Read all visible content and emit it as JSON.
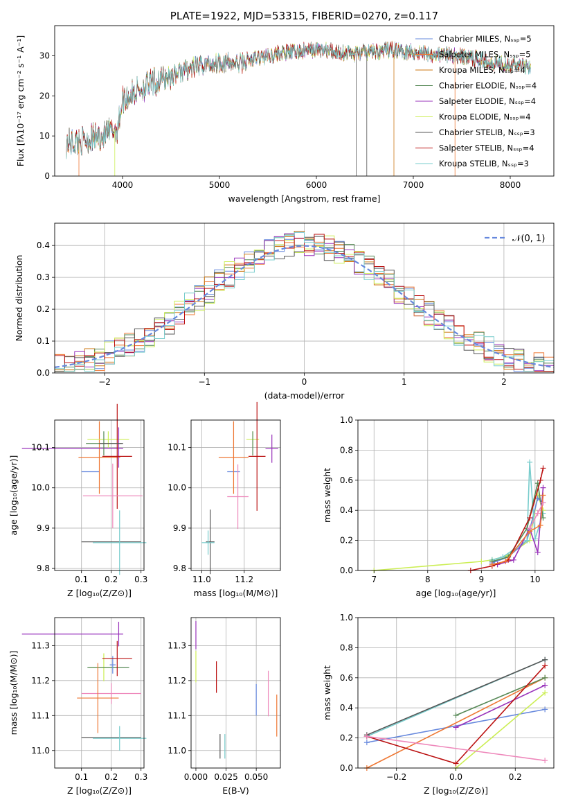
{
  "colors": {
    "chabrier_miles": "#6688dd",
    "salpeter_miles": "#ee7733",
    "kroupa_miles": "#cc7711",
    "chabrier_elodie": "#558855",
    "salpeter_elodie": "#9933bb",
    "kroupa_elodie": "#ccee55",
    "chabrier_stelib": "#555555",
    "salpeter_stelib": "#bb1111",
    "kroupa_stelib": "#77cccc",
    "pink": "#ee88bb",
    "gauss": "#6688dd"
  },
  "chart_data": [
    {
      "type": "line",
      "title": "PLATE=1922, MJD=53315, FIBERID=0270, z=0.117",
      "xlabel": "wavelength [Angstrom, rest frame]",
      "ylabel": "Flux [fλ10⁻¹⁷ erg cm⁻² s⁻¹ A⁻¹]",
      "xlim": [
        3300,
        8450
      ],
      "ylim": [
        0,
        37.5
      ],
      "xticks": [
        "4000",
        "5000",
        "6000",
        "7000",
        "8000"
      ],
      "yticks": [
        "0",
        "10",
        "20",
        "30"
      ],
      "legend_position": "right",
      "series": [
        {
          "name": "Chabrier MILES, Nₛₛₚ=5"
        },
        {
          "name": "Salpeter MILES, Nₛₛₚ=5"
        },
        {
          "name": "Kroupa MILES, Nₛₛₚ=4"
        },
        {
          "name": "Chabrier ELODIE, Nₛₛₚ=4"
        },
        {
          "name": "Salpeter ELODIE, Nₛₛₚ=4"
        },
        {
          "name": "Kroupa ELODIE, Nₛₛₚ=4"
        },
        {
          "name": "Chabrier STELIB, Nₛₛₚ=3"
        },
        {
          "name": "Salpeter STELIB, Nₛₛₚ=4"
        },
        {
          "name": "Kroupa STELIB, Nₛₛₚ=3"
        }
      ],
      "continuum": {
        "x": [
          3400,
          3600,
          3800,
          3950,
          4000,
          4200,
          4400,
          4600,
          4800,
          5000,
          5200,
          5400,
          5600,
          5800,
          6000,
          6200,
          6400,
          6600,
          6800,
          7000,
          7200,
          7400,
          7600,
          7800,
          8000,
          8200
        ],
        "y": [
          8,
          9,
          10,
          12,
          19,
          22,
          24,
          26,
          27.5,
          28.5,
          28,
          29.5,
          30.5,
          31,
          31.5,
          31,
          30.5,
          31,
          31.5,
          31,
          30.5,
          30,
          29.5,
          28.5,
          28,
          27.5
        ]
      }
    },
    {
      "type": "bar",
      "xlabel": "(data-model)/error",
      "ylabel": "Normed distribution",
      "xlim": [
        -2.5,
        2.5
      ],
      "ylim": [
        0,
        0.47
      ],
      "xticks": [
        "−2",
        "−1",
        "0",
        "1",
        "2"
      ],
      "yticks": [
        "0.0",
        "0.1",
        "0.2",
        "0.3",
        "0.4"
      ],
      "legend": "𝒩(0, 1)",
      "legend_position": "top-right",
      "grid": true
    },
    {
      "type": "scatter",
      "xlabel": "Z [log₁₀(Z/Z⊙)]",
      "ylabel": "age  [log₁₀(age/yr)]",
      "xlim": [
        0.01,
        0.31
      ],
      "ylim": [
        9.795,
        10.168
      ],
      "xticks": [
        "0.1",
        "0.2",
        "0.3"
      ],
      "yticks": [
        "9.8",
        "9.9",
        "10.0",
        "10.1"
      ],
      "points": [
        {
          "x": 0.13,
          "y": 10.04,
          "xerr": 0.03,
          "yerr": 0,
          "c": "chabrier_miles"
        },
        {
          "x": 0.16,
          "y": 10.075,
          "xerr": 0.07,
          "yerr": 0.09,
          "c": "salpeter_miles"
        },
        {
          "x": 0.19,
          "y": 10.12,
          "xerr": 0.07,
          "yerr": 0.02,
          "c": "kroupa_elodie"
        },
        {
          "x": 0.07,
          "y": 10.098,
          "xerr": 0.17,
          "yerr": 0,
          "c": "salpeter_elodie"
        },
        {
          "x": 0.225,
          "y": 10.1,
          "xerr": 0,
          "yerr": 0.05,
          "c": "salpeter_elodie"
        },
        {
          "x": 0.175,
          "y": 10.11,
          "xerr": 0.06,
          "yerr": 0.03,
          "c": "chabrier_elodie"
        },
        {
          "x": 0.22,
          "y": 10.078,
          "xerr": 0.05,
          "yerr": 0.13,
          "c": "salpeter_stelib"
        },
        {
          "x": 0.205,
          "y": 9.98,
          "xerr": 0.1,
          "yerr": 0.08,
          "c": "pink"
        },
        {
          "x": 0.2,
          "y": 10.11,
          "xerr": 0.04,
          "yerr": 0,
          "c": "chabrier_stelib"
        },
        {
          "x": 0.2,
          "y": 9.866,
          "xerr": 0.1,
          "yerr": 0,
          "c": "chabrier_stelib"
        },
        {
          "x": 0.228,
          "y": 9.864,
          "xerr": 0.09,
          "yerr": 0.08,
          "c": "kroupa_stelib"
        }
      ]
    },
    {
      "type": "scatter",
      "xlabel": "mass [log₁₀(M/M⊙)]",
      "ylabel": "",
      "xlim": [
        10.95,
        11.37
      ],
      "ylim": [
        9.795,
        10.168
      ],
      "xticks": [
        "11.0",
        "11.2"
      ],
      "yticks": [
        "9.8",
        "9.9",
        "10.0",
        "10.1"
      ],
      "points": [
        {
          "x": 11.15,
          "y": 10.04,
          "xerr": 0.03,
          "yerr": 0,
          "c": "chabrier_miles"
        },
        {
          "x": 11.15,
          "y": 10.075,
          "xerr": 0.07,
          "yerr": 0.09,
          "c": "salpeter_miles"
        },
        {
          "x": 11.24,
          "y": 10.12,
          "xerr": 0.03,
          "yerr": 0.02,
          "c": "kroupa_elodie"
        },
        {
          "x": 11.33,
          "y": 10.097,
          "xerr": 0.03,
          "yerr": 0.035,
          "c": "salpeter_elodie"
        },
        {
          "x": 11.24,
          "y": 10.11,
          "xerr": 0,
          "yerr": 0.03,
          "c": "chabrier_elodie"
        },
        {
          "x": 11.26,
          "y": 10.078,
          "xerr": 0.04,
          "yerr": 0.135,
          "c": "salpeter_stelib"
        },
        {
          "x": 11.17,
          "y": 9.978,
          "xerr": 0.05,
          "yerr": 0.08,
          "c": "pink"
        },
        {
          "x": 11.04,
          "y": 9.866,
          "xerr": 0.02,
          "yerr": 0.08,
          "c": "chabrier_stelib"
        },
        {
          "x": 11.03,
          "y": 9.864,
          "xerr": 0.03,
          "yerr": 0.03,
          "c": "kroupa_stelib"
        }
      ]
    },
    {
      "type": "line",
      "xlabel": "age  [log₁₀(age/yr)]",
      "ylabel": "mass weight",
      "xlim": [
        6.7,
        10.35
      ],
      "ylim": [
        0,
        1
      ],
      "xticks": [
        "7",
        "8",
        "9",
        "10"
      ],
      "yticks": [
        "0.0",
        "0.2",
        "0.4",
        "0.6",
        "0.8",
        "1.0"
      ],
      "grid": true,
      "series": [
        {
          "c": "kroupa_elodie",
          "x": [
            7.0,
            9.0,
            9.2,
            9.5,
            9.9,
            10.05,
            10.15
          ],
          "y": [
            0.0,
            0.06,
            0.07,
            0.1,
            0.2,
            0.5,
            0.4
          ]
        },
        {
          "c": "chabrier_miles",
          "x": [
            9.2,
            9.5,
            9.85,
            10.05,
            10.15
          ],
          "y": [
            0.05,
            0.09,
            0.2,
            0.48,
            0.45
          ]
        },
        {
          "c": "kroupa_stelib",
          "x": [
            9.2,
            9.4,
            9.85,
            9.9,
            10.0,
            10.15
          ],
          "y": [
            0.07,
            0.09,
            0.2,
            0.72,
            0.21,
            0.38
          ]
        },
        {
          "c": "chabrier_elodie",
          "x": [
            9.2,
            9.5,
            9.85,
            10.05,
            10.15
          ],
          "y": [
            0.06,
            0.09,
            0.28,
            0.58,
            0.35
          ]
        },
        {
          "c": "salpeter_elodie",
          "x": [
            9.3,
            9.6,
            9.9,
            10.05,
            10.15
          ],
          "y": [
            0.04,
            0.07,
            0.28,
            0.12,
            0.55
          ]
        },
        {
          "c": "salpeter_stelib",
          "x": [
            8.8,
            9.2,
            9.5,
            9.9,
            10.1,
            10.15
          ],
          "y": [
            0.0,
            0.03,
            0.07,
            0.35,
            0.6,
            0.68
          ]
        },
        {
          "c": "salpeter_miles",
          "x": [
            9.2,
            9.45,
            9.9,
            10.1,
            10.15
          ],
          "y": [
            0.04,
            0.06,
            0.26,
            0.3,
            0.5
          ]
        },
        {
          "c": "pink",
          "x": [
            9.9,
            10.05,
            10.15
          ],
          "y": [
            0.28,
            0.38,
            0.45
          ]
        }
      ]
    },
    {
      "type": "scatter",
      "xlabel": "Z [log₁₀(Z/Z⊙)]",
      "ylabel": "mass [log₁₀(M/M⊙)]",
      "xlim": [
        0.01,
        0.31
      ],
      "ylim": [
        10.95,
        11.38
      ],
      "xticks": [
        "0.1",
        "0.2",
        "0.3"
      ],
      "yticks": [
        "11.0",
        "11.1",
        "11.2",
        "11.3"
      ],
      "points": [
        {
          "x": 0.07,
          "y": 11.333,
          "xerr": 0.17,
          "yerr": 0,
          "c": "salpeter_elodie"
        },
        {
          "x": 0.225,
          "y": 11.333,
          "xerr": 0,
          "yerr": 0.035,
          "c": "salpeter_elodie"
        },
        {
          "x": 0.175,
          "y": 11.238,
          "xerr": 0.05,
          "yerr": 0.04,
          "c": "kroupa_elodie"
        },
        {
          "x": 0.19,
          "y": 11.238,
          "xerr": 0.07,
          "yerr": 0,
          "c": "chabrier_elodie"
        },
        {
          "x": 0.205,
          "y": 11.245,
          "xerr": 0.01,
          "yerr": 0.025,
          "c": "chabrier_miles"
        },
        {
          "x": 0.22,
          "y": 11.263,
          "xerr": 0.05,
          "yerr": 0.05,
          "c": "salpeter_stelib"
        },
        {
          "x": 0.2,
          "y": 11.163,
          "xerr": 0.1,
          "yerr": 0.03,
          "c": "pink"
        },
        {
          "x": 0.155,
          "y": 11.15,
          "xerr": 0.07,
          "yerr": 0.1,
          "c": "salpeter_miles"
        },
        {
          "x": 0.2,
          "y": 11.037,
          "xerr": 0.1,
          "yerr": 0,
          "c": "chabrier_stelib"
        },
        {
          "x": 0.228,
          "y": 11.035,
          "xerr": 0.09,
          "yerr": 0.035,
          "c": "kroupa_stelib"
        }
      ]
    },
    {
      "type": "scatter",
      "xlabel": "E(B-V)",
      "ylabel": "",
      "xlim": [
        -0.004,
        0.07
      ],
      "ylim": [
        10.95,
        11.38
      ],
      "xticks": [
        "0.000",
        "0.025",
        "0.050"
      ],
      "yticks": [
        "11.0",
        "11.1",
        "11.2",
        "11.3"
      ],
      "points": [
        {
          "x": 0.0,
          "y": 11.33,
          "xerr": 0,
          "yerr": 0.04,
          "c": "salpeter_elodie"
        },
        {
          "x": 0.0,
          "y": 11.24,
          "xerr": 0,
          "yerr": 0.045,
          "c": "kroupa_elodie"
        },
        {
          "x": 0.017,
          "y": 11.21,
          "xerr": 0,
          "yerr": 0.045,
          "c": "salpeter_stelib"
        },
        {
          "x": 0.02,
          "y": 11.012,
          "xerr": 0,
          "yerr": 0.035,
          "c": "chabrier_stelib"
        },
        {
          "x": 0.024,
          "y": 11.012,
          "xerr": 0,
          "yerr": 0.035,
          "c": "kroupa_stelib"
        },
        {
          "x": 0.05,
          "y": 11.145,
          "xerr": 0,
          "yerr": 0.045,
          "c": "chabrier_miles"
        },
        {
          "x": 0.06,
          "y": 11.163,
          "xerr": 0,
          "yerr": 0.065,
          "c": "pink"
        },
        {
          "x": 0.067,
          "y": 11.1,
          "xerr": 0,
          "yerr": 0.06,
          "c": "salpeter_miles"
        }
      ]
    },
    {
      "type": "line",
      "xlabel": "Z [log₁₀(Z/Z⊙)]",
      "ylabel": "mass weight",
      "xlim": [
        -0.33,
        0.33
      ],
      "ylim": [
        0,
        1
      ],
      "xticks": [
        "−0.2",
        "0.0",
        "0.2"
      ],
      "yticks": [
        "0.0",
        "0.2",
        "0.4",
        "0.6",
        "0.8",
        "1.0"
      ],
      "grid": true,
      "series": [
        {
          "c": "kroupa_stelib",
          "x": [
            -0.3,
            0.3
          ],
          "y": [
            0.21,
            0.72
          ]
        },
        {
          "c": "chabrier_stelib",
          "x": [
            -0.3,
            0.3
          ],
          "y": [
            0.22,
            0.72
          ]
        },
        {
          "c": "chabrier_miles",
          "x": [
            -0.3,
            0.3
          ],
          "y": [
            0.17,
            0.39
          ]
        },
        {
          "c": "salpeter_miles",
          "x": [
            -0.3,
            0.3
          ],
          "y": [
            0.0,
            0.6
          ]
        },
        {
          "c": "chabrier_elodie",
          "x": [
            0.0,
            0.3
          ],
          "y": [
            0.35,
            0.6
          ]
        },
        {
          "c": "salpeter_elodie",
          "x": [
            0.0,
            0.3
          ],
          "y": [
            0.27,
            0.55
          ]
        },
        {
          "c": "kroupa_elodie",
          "x": [
            0.0,
            0.3
          ],
          "y": [
            0.0,
            0.5
          ]
        },
        {
          "c": "salpeter_stelib",
          "x": [
            -0.3,
            0.0,
            0.3
          ],
          "y": [
            0.21,
            0.03,
            0.68
          ]
        },
        {
          "c": "pink",
          "x": [
            -0.3,
            0.3
          ],
          "y": [
            0.21,
            0.05
          ]
        }
      ]
    }
  ]
}
